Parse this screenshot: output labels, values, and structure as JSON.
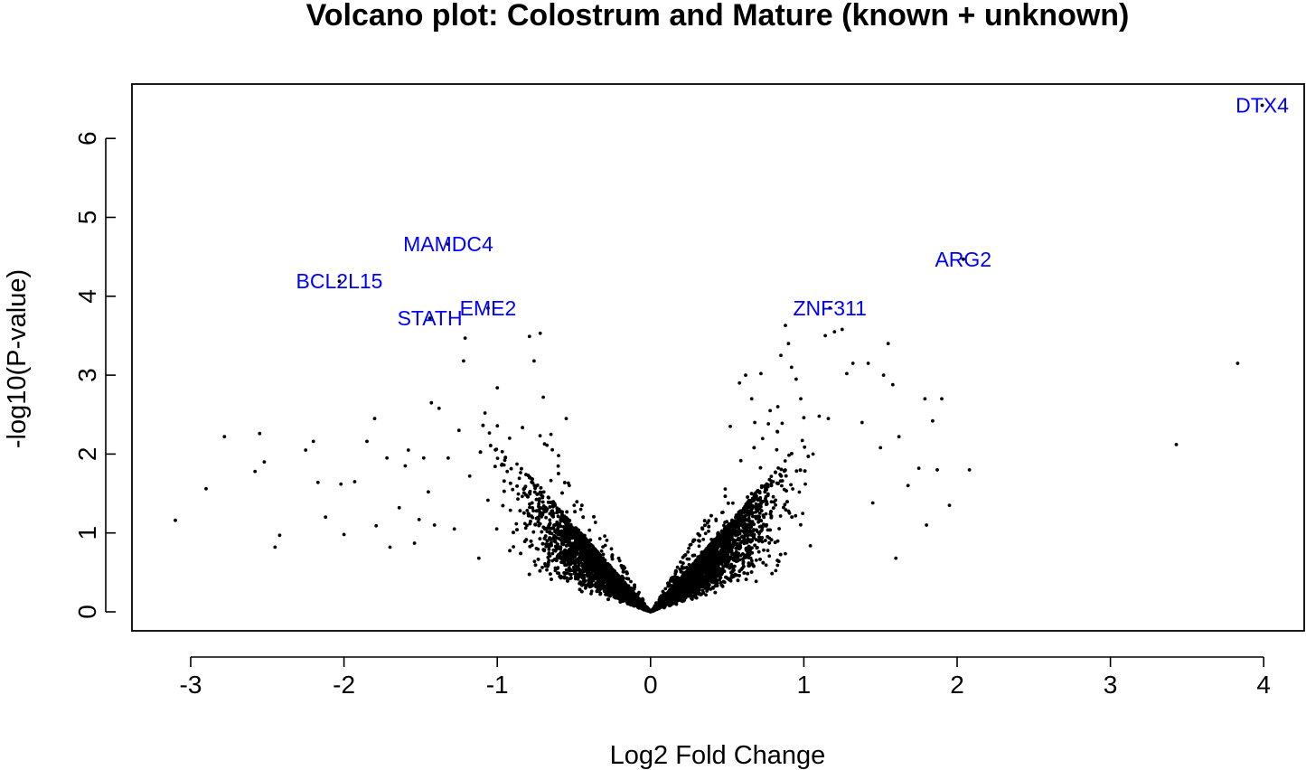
{
  "chart_data": {
    "type": "scatter",
    "title": "Volcano plot: Colostrum and Mature (known + unknown)",
    "xlabel": "Log2 Fold Change",
    "ylabel": "-log10(P-value)",
    "xlim": [
      -3.3,
      4.3
    ],
    "ylim": [
      -0.25,
      6.75
    ],
    "x_ticks": [
      -3,
      -2,
      -1,
      0,
      1,
      2,
      3,
      4
    ],
    "x_tick_labels": [
      "-3",
      "-2",
      "-1",
      "0",
      "1",
      "2",
      "3",
      "4"
    ],
    "y_ticks": [
      0,
      1,
      2,
      3,
      4,
      5,
      6
    ],
    "y_tick_labels": [
      "0",
      "1",
      "2",
      "3",
      "4",
      "5",
      "6"
    ],
    "grid": false,
    "point_color": "#000000",
    "label_color": "#0000ff",
    "labeled_points": [
      {
        "label": "DTX4",
        "x": 3.99,
        "y": 6.42
      },
      {
        "label": "MAMDC4",
        "x": -1.32,
        "y": 4.66
      },
      {
        "label": "ARG2",
        "x": 2.04,
        "y": 4.47
      },
      {
        "label": "BCL2L15",
        "x": -2.03,
        "y": 4.19
      },
      {
        "label": "EME2",
        "x": -1.06,
        "y": 3.85
      },
      {
        "label": "ZNF311",
        "x": 1.17,
        "y": 3.85
      },
      {
        "label": "STATH",
        "x": -1.44,
        "y": 3.72
      }
    ],
    "outlier_points": [
      [
        -3.1,
        1.16
      ],
      [
        -2.9,
        1.56
      ],
      [
        -2.78,
        2.22
      ],
      [
        -2.58,
        1.78
      ],
      [
        -2.55,
        2.26
      ],
      [
        -2.52,
        1.9
      ],
      [
        -2.45,
        0.82
      ],
      [
        -2.42,
        0.97
      ],
      [
        -2.25,
        2.05
      ],
      [
        -2.2,
        2.16
      ],
      [
        -2.17,
        1.64
      ],
      [
        -2.12,
        1.2
      ],
      [
        -2.02,
        1.62
      ],
      [
        -2.0,
        0.98
      ],
      [
        -1.93,
        1.65
      ],
      [
        -1.85,
        2.16
      ],
      [
        -1.8,
        2.45
      ],
      [
        -1.79,
        1.09
      ],
      [
        -1.72,
        1.95
      ],
      [
        -1.7,
        0.82
      ],
      [
        -1.64,
        1.32
      ],
      [
        -1.6,
        1.85
      ],
      [
        -1.58,
        2.05
      ],
      [
        -1.54,
        0.87
      ],
      [
        -1.51,
        1.17
      ],
      [
        -1.48,
        1.95
      ],
      [
        -1.45,
        1.52
      ],
      [
        -1.43,
        2.65
      ],
      [
        -1.41,
        1.1
      ],
      [
        -1.38,
        2.58
      ],
      [
        -1.32,
        1.95
      ],
      [
        -1.28,
        1.05
      ],
      [
        -1.25,
        2.3
      ],
      [
        -1.22,
        3.18
      ],
      [
        -1.21,
        3.47
      ],
      [
        -1.18,
        1.72
      ],
      [
        -1.12,
        0.68
      ],
      [
        -1.08,
        2.52
      ],
      [
        -1.0,
        2.84
      ],
      [
        -0.92,
        2.2
      ],
      [
        -0.9,
        1.55
      ],
      [
        -0.79,
        3.49
      ],
      [
        -0.76,
        3.18
      ],
      [
        -0.72,
        3.53
      ],
      [
        -0.7,
        2.72
      ],
      [
        -0.65,
        2.25
      ],
      [
        -0.6,
        1.98
      ],
      [
        -0.55,
        2.45
      ],
      [
        -0.53,
        1.6
      ],
      [
        0.52,
        2.35
      ],
      [
        0.58,
        2.9
      ],
      [
        0.62,
        3.0
      ],
      [
        0.66,
        2.7
      ],
      [
        0.68,
        2.4
      ],
      [
        0.72,
        3.02
      ],
      [
        0.78,
        2.55
      ],
      [
        0.8,
        1.65
      ],
      [
        0.83,
        2.6
      ],
      [
        0.85,
        3.25
      ],
      [
        0.88,
        3.63
      ],
      [
        0.9,
        3.4
      ],
      [
        0.92,
        3.1
      ],
      [
        0.95,
        2.95
      ],
      [
        0.98,
        2.7
      ],
      [
        1.0,
        2.46
      ],
      [
        1.06,
        2.0
      ],
      [
        1.1,
        2.48
      ],
      [
        1.14,
        3.5
      ],
      [
        1.16,
        2.45
      ],
      [
        1.2,
        3.55
      ],
      [
        1.25,
        3.58
      ],
      [
        1.28,
        3.02
      ],
      [
        1.32,
        3.15
      ],
      [
        1.38,
        2.4
      ],
      [
        1.42,
        3.15
      ],
      [
        1.45,
        1.38
      ],
      [
        1.5,
        2.08
      ],
      [
        1.52,
        3.0
      ],
      [
        1.55,
        3.4
      ],
      [
        1.58,
        2.88
      ],
      [
        1.6,
        0.68
      ],
      [
        1.62,
        2.22
      ],
      [
        1.68,
        1.6
      ],
      [
        1.75,
        1.82
      ],
      [
        1.79,
        2.7
      ],
      [
        1.8,
        1.1
      ],
      [
        1.84,
        2.42
      ],
      [
        1.87,
        1.8
      ],
      [
        1.9,
        2.7
      ],
      [
        1.95,
        1.35
      ],
      [
        2.08,
        1.8
      ],
      [
        3.43,
        2.12
      ],
      [
        3.83,
        3.15
      ]
    ],
    "cloud": {
      "seed": 7,
      "points": 9000,
      "description_values": "dense V-shaped cloud centered at log2FC 0, -log10(P) 0"
    }
  }
}
